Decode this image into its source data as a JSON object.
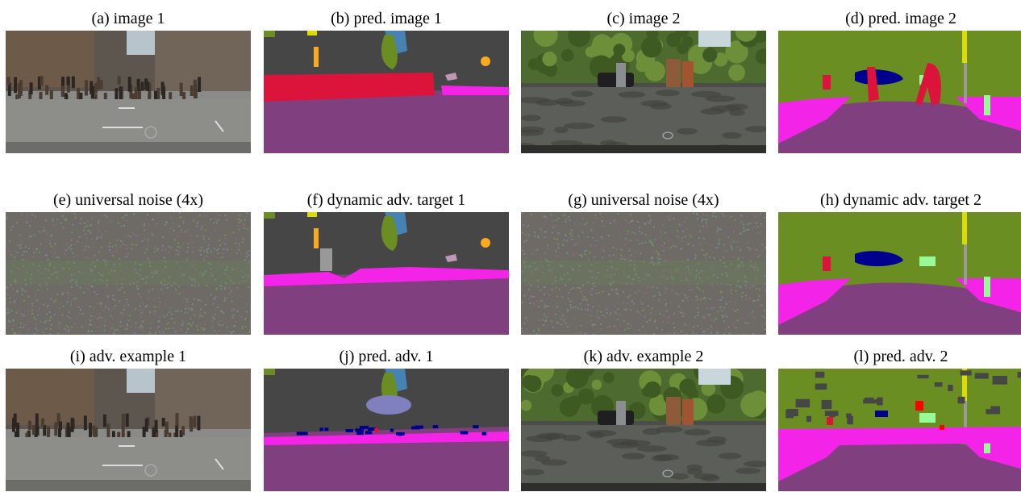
{
  "figure": {
    "rows": [
      {
        "panels": [
          {
            "id": "a",
            "caption": "(a) image 1",
            "kind": "photo-1"
          },
          {
            "id": "b",
            "caption": "(b) pred. image 1",
            "kind": "seg-1"
          },
          {
            "id": "c",
            "caption": "(c) image 2",
            "kind": "photo-2"
          },
          {
            "id": "d",
            "caption": "(d) pred. image 2",
            "kind": "seg-2"
          }
        ]
      },
      {
        "panels": [
          {
            "id": "e",
            "caption": "(e) universal noise (4x)",
            "kind": "noise"
          },
          {
            "id": "f",
            "caption": "(f) dynamic adv. target 1",
            "kind": "target-1"
          },
          {
            "id": "g",
            "caption": "(g) universal noise (4x)",
            "kind": "noise"
          },
          {
            "id": "h",
            "caption": "(h) dynamic adv. target 2",
            "kind": "target-2"
          }
        ]
      },
      {
        "panels": [
          {
            "id": "i",
            "caption": "(i) adv. example 1",
            "kind": "photo-1"
          },
          {
            "id": "j",
            "caption": "(j) pred. adv. 1",
            "kind": "adv-seg-1"
          },
          {
            "id": "k",
            "caption": "(k) adv. example 2",
            "kind": "photo-2"
          },
          {
            "id": "l",
            "caption": "(l) pred. adv. 2",
            "kind": "adv-seg-2"
          }
        ]
      }
    ],
    "colors": {
      "road": "#804080",
      "sidewalk": "#f423e8",
      "building": "#464646",
      "vegetation": "#6b8e23",
      "sky": "#4682b4",
      "person": "#dc143c",
      "car": "#00008e",
      "pole": "#999999",
      "traffic_sign": "#dcdc00",
      "traffic_light": "#faaa1e",
      "terrain": "#98fb98",
      "rider": "#ff0000",
      "misc": "#7f80bd",
      "wall": "#be99b3"
    }
  }
}
